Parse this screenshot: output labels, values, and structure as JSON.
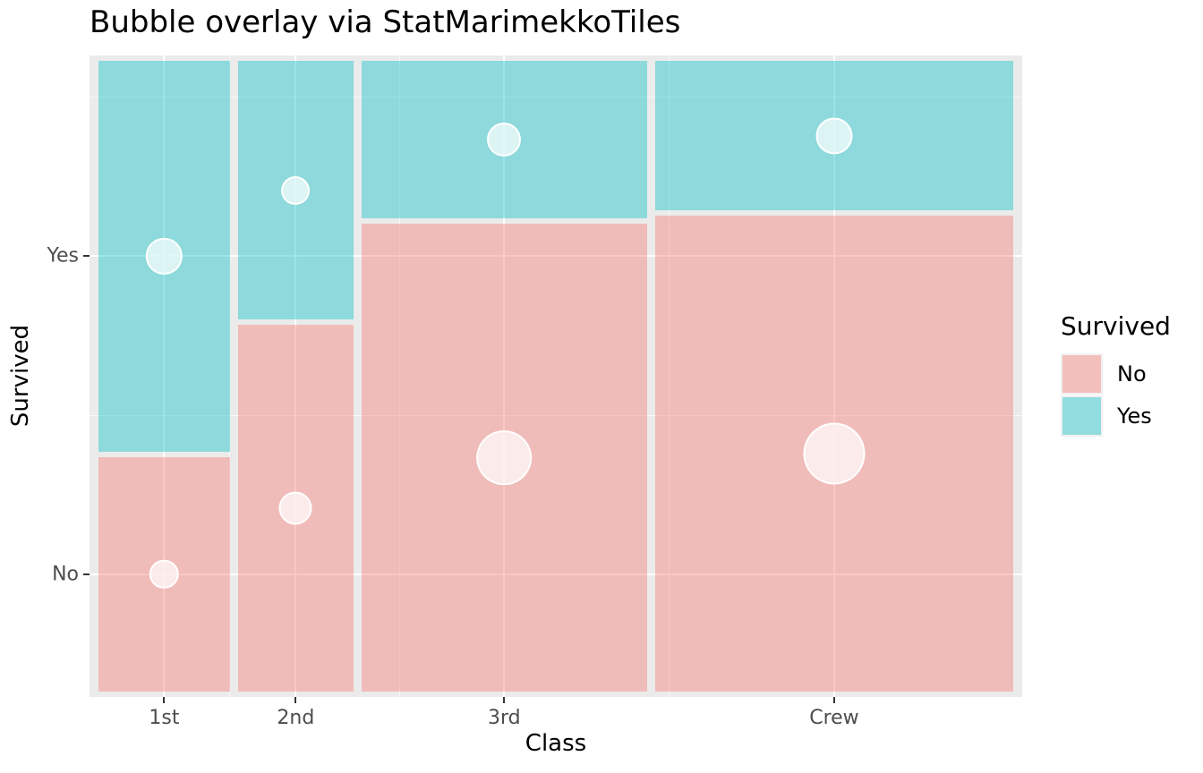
{
  "chart_data": {
    "type": "marimekko",
    "title": "Bubble overlay via StatMarimekkoTiles",
    "xlabel": "Class",
    "ylabel": "Survived",
    "categories": [
      "1st",
      "2nd",
      "3rd",
      "Crew"
    ],
    "x_tick_labels": [
      "1st",
      "2nd",
      "3rd",
      "Crew"
    ],
    "y_tick_labels": [
      "Yes",
      "No"
    ],
    "series": [
      {
        "name": "No",
        "row": "bottom",
        "color": "#F8766D",
        "values": [
          122,
          167,
          528,
          673
        ]
      },
      {
        "name": "Yes",
        "row": "top",
        "color": "#00BFC4",
        "values": [
          203,
          118,
          178,
          212
        ]
      }
    ],
    "column_totals": [
      325,
      285,
      706,
      885
    ],
    "grand_total": 2201,
    "fill_alpha": 0.4,
    "bubbles": {
      "fill": "#FFFFFF",
      "sized_by": "count",
      "position": "tile-center"
    },
    "legend": {
      "title": "Survived",
      "position": "right",
      "entries": [
        {
          "label": "No",
          "color": "#F8766D"
        },
        {
          "label": "Yes",
          "color": "#00BFC4"
        }
      ]
    },
    "panel_bg": "#EBEBEB",
    "grid_color": "#FFFFFF",
    "axis_text_color": "#4D4D4D",
    "grid": "on"
  }
}
